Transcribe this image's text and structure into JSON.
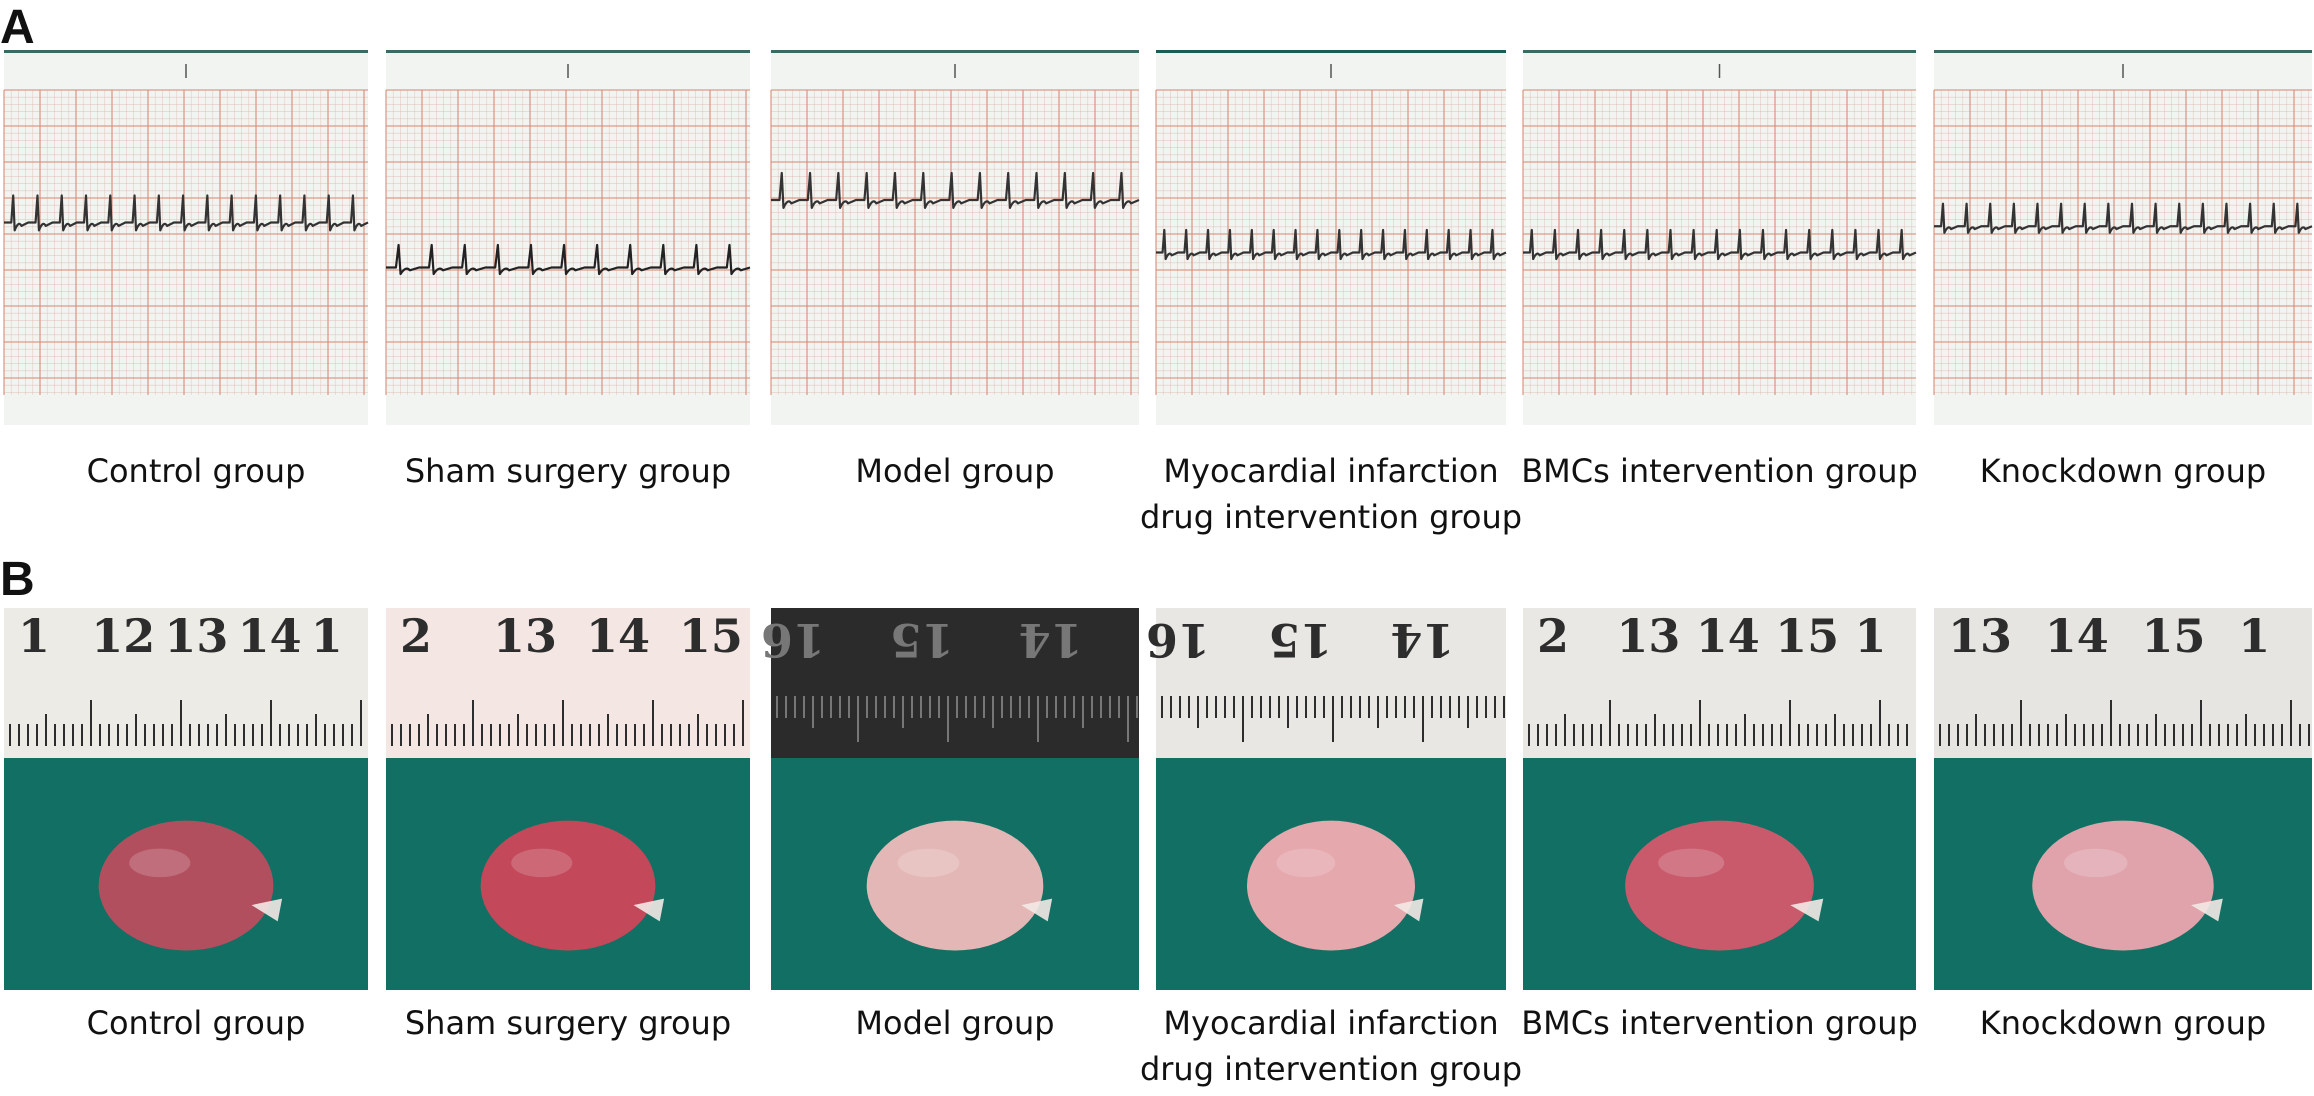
{
  "panels": {
    "a": {
      "letter": "A",
      "captions": [
        [
          "Control group"
        ],
        [
          "Sham surgery group"
        ],
        [
          "Model group"
        ],
        [
          "Myocardial infarction",
          "drug intervention group"
        ],
        [
          "BMCs intervention group"
        ],
        [
          "Knockdown group"
        ]
      ],
      "ecg_tiles": [
        {
          "baseline": 0.46,
          "beats": 15,
          "amp": 0.06,
          "ink": "#333333"
        },
        {
          "baseline": 0.58,
          "beats": 11,
          "amp": 0.05,
          "ink": "#222222"
        },
        {
          "baseline": 0.4,
          "beats": 13,
          "amp": 0.06,
          "ink": "#333333"
        },
        {
          "baseline": 0.54,
          "beats": 16,
          "amp": 0.05,
          "ink": "#333333"
        },
        {
          "baseline": 0.54,
          "beats": 17,
          "amp": 0.05,
          "ink": "#333333"
        },
        {
          "baseline": 0.47,
          "beats": 16,
          "amp": 0.05,
          "ink": "#333333"
        }
      ]
    },
    "b": {
      "letter": "B",
      "captions": [
        [
          "Control group"
        ],
        [
          "Sham surgery group"
        ],
        [
          "Model group"
        ],
        [
          "Myocardial infarction",
          "drug intervention group"
        ],
        [
          "BMCs intervention group"
        ],
        [
          "Knockdown group"
        ]
      ],
      "heart_tiles": [
        {
          "ruler_numbers": [
            "1",
            "12",
            "13",
            "14",
            "1"
          ],
          "ruler_color": "#ecebe6",
          "ruler_inverted": false,
          "heart_color": "#b24f5e"
        },
        {
          "ruler_numbers": [
            "2",
            "13",
            "14",
            "15"
          ],
          "ruler_color": "#f3e6e3",
          "ruler_inverted": false,
          "heart_color": "#c2485a"
        },
        {
          "ruler_numbers": [
            "16",
            "15",
            "14"
          ],
          "ruler_color": "#2b2b2b",
          "ruler_inverted": true,
          "heart_color": "#e3b7b5"
        },
        {
          "ruler_numbers": [
            "16",
            "15",
            "14"
          ],
          "ruler_color": "#e8e7e4",
          "ruler_inverted": true,
          "heart_color": "#e5a8ad"
        },
        {
          "ruler_numbers": [
            "2",
            "13",
            "14",
            "15",
            "1"
          ],
          "ruler_color": "#e9e8e4",
          "ruler_inverted": false,
          "heart_color": "#c95a6c"
        },
        {
          "ruler_numbers": [
            "13",
            "14",
            "15",
            "1"
          ],
          "ruler_color": "#e6e5e2",
          "ruler_inverted": false,
          "heart_color": "#e0a3ac"
        }
      ],
      "colors": {
        "background_green": "#116f64"
      }
    }
  }
}
